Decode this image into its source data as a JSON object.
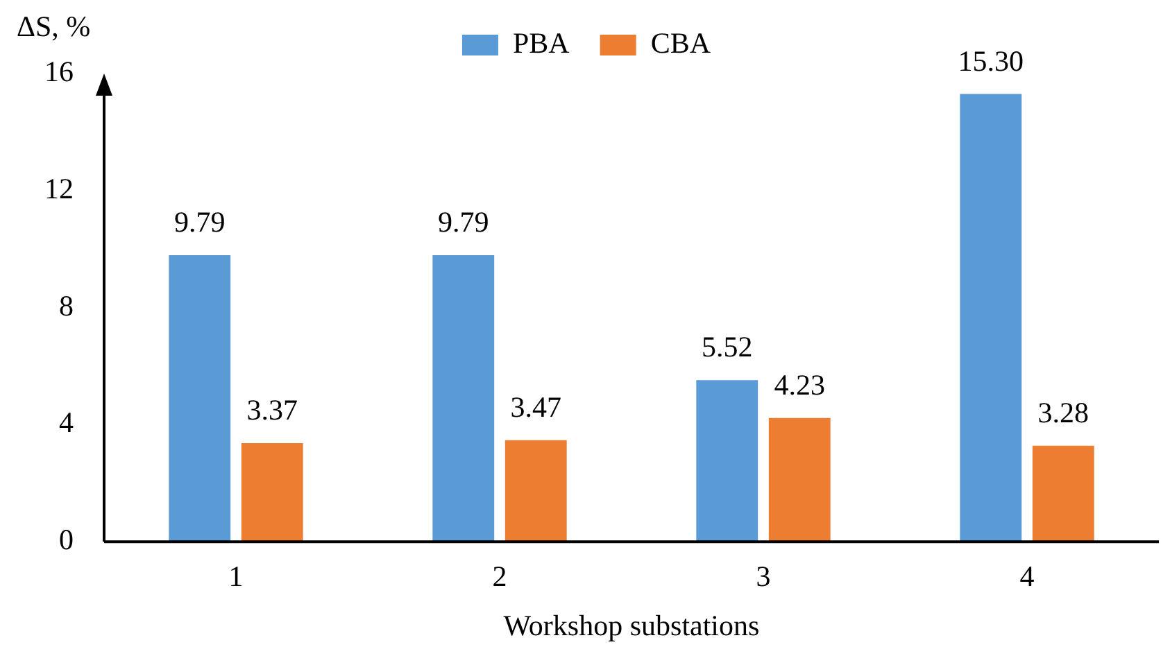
{
  "chart_data": {
    "type": "bar",
    "xlabel": "Workshop substations",
    "ylabel": "ΔS, %",
    "categories": [
      "1",
      "2",
      "3",
      "4"
    ],
    "series": [
      {
        "name": "PBA",
        "color": "#5b9bd5",
        "values": [
          9.79,
          9.79,
          5.52,
          15.3
        ],
        "value_labels": [
          "9.79",
          "9.79",
          "5.52",
          "15.30"
        ]
      },
      {
        "name": "CBA",
        "color": "#ed7d31",
        "values": [
          3.37,
          3.47,
          4.23,
          3.28
        ],
        "value_labels": [
          "3.37",
          "3.47",
          "4.23",
          "3.28"
        ]
      }
    ],
    "ylim": [
      0,
      16
    ],
    "yticks": [
      0,
      4,
      8,
      12,
      16
    ],
    "grid": false,
    "legend": "top"
  }
}
